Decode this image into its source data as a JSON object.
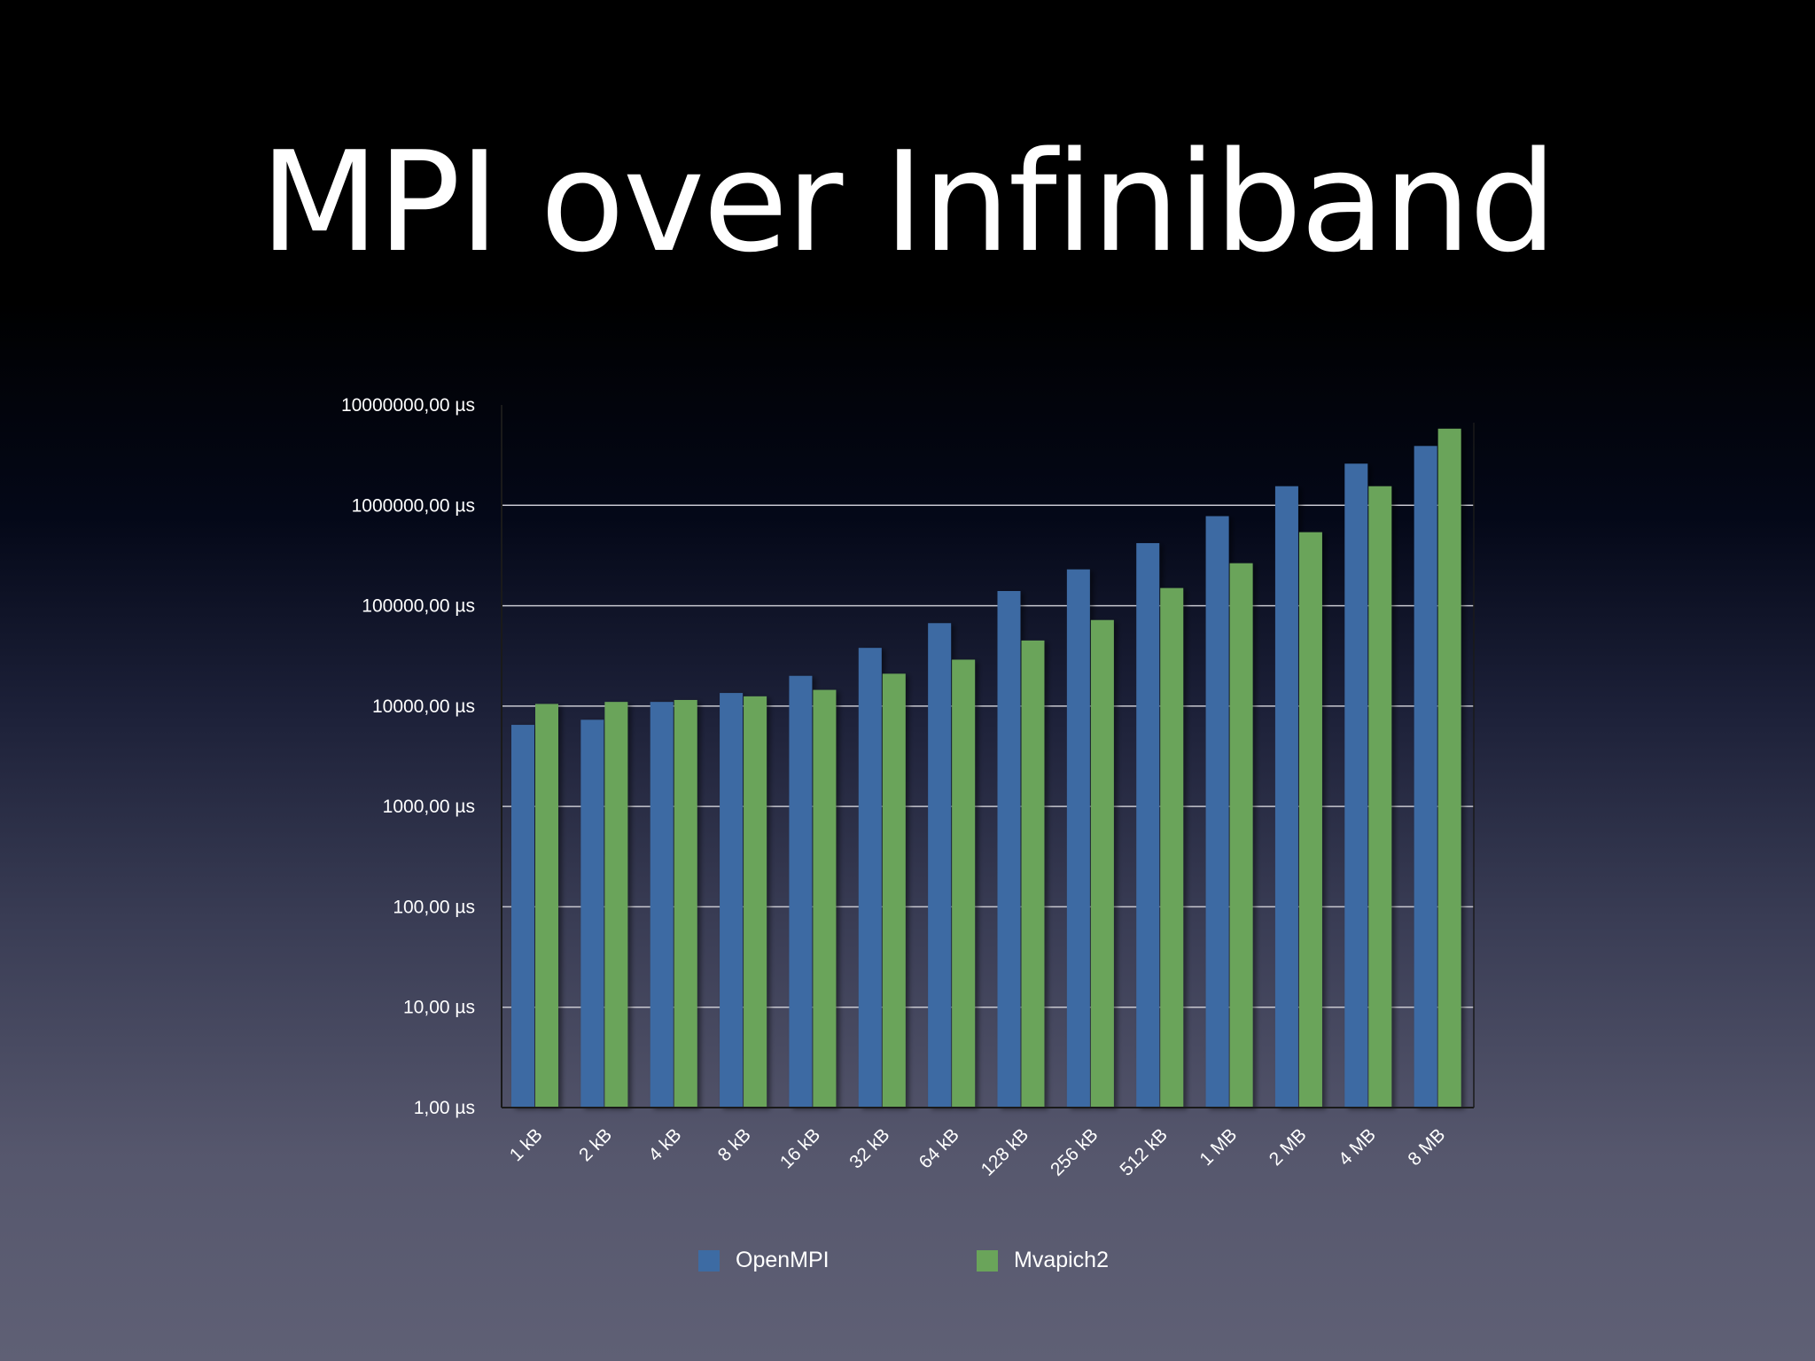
{
  "slide": {
    "title": "MPI over Infiniband"
  },
  "colors": {
    "openmpi": "#3d6ba3",
    "mvapich2": "#6aa45a",
    "gridline": "#c8c8d0",
    "axis": "#1a1a1a"
  },
  "legend": {
    "openmpi_label": "OpenMPI",
    "mvapich2_label": "Mvapich2"
  },
  "chart_data": {
    "type": "bar",
    "scale": "log",
    "grid": true,
    "legend_position": "bottom",
    "ylim": [
      1,
      10000000
    ],
    "y_ticks": [
      {
        "value": 1,
        "label": "1,00 µs"
      },
      {
        "value": 10,
        "label": "10,00 µs"
      },
      {
        "value": 100,
        "label": "100,00 µs"
      },
      {
        "value": 1000,
        "label": "1000,00 µs"
      },
      {
        "value": 10000,
        "label": "10000,00 µs"
      },
      {
        "value": 100000,
        "label": "100000,00 µs"
      },
      {
        "value": 1000000,
        "label": "1000000,00 µs"
      },
      {
        "value": 10000000,
        "label": "10000000,00 µs"
      }
    ],
    "categories": [
      "1 kB",
      "2 kB",
      "4 kB",
      "8 kB",
      "16 kB",
      "32 kB",
      "64 kB",
      "128 kB",
      "256 kB",
      "512 kB",
      "1 MB",
      "2 MB",
      "4 MB",
      "8 MB"
    ],
    "series": [
      {
        "name": "OpenMPI",
        "values": [
          6500,
          7300,
          11000,
          13500,
          20000,
          38000,
          67000,
          140000,
          230000,
          420000,
          780000,
          1550000,
          2600000,
          3900000
        ]
      },
      {
        "name": "Mvapich2",
        "values": [
          10500,
          11000,
          11500,
          12500,
          14500,
          21000,
          29000,
          45000,
          72000,
          150000,
          265000,
          540000,
          1550000,
          5800000
        ]
      }
    ]
  }
}
